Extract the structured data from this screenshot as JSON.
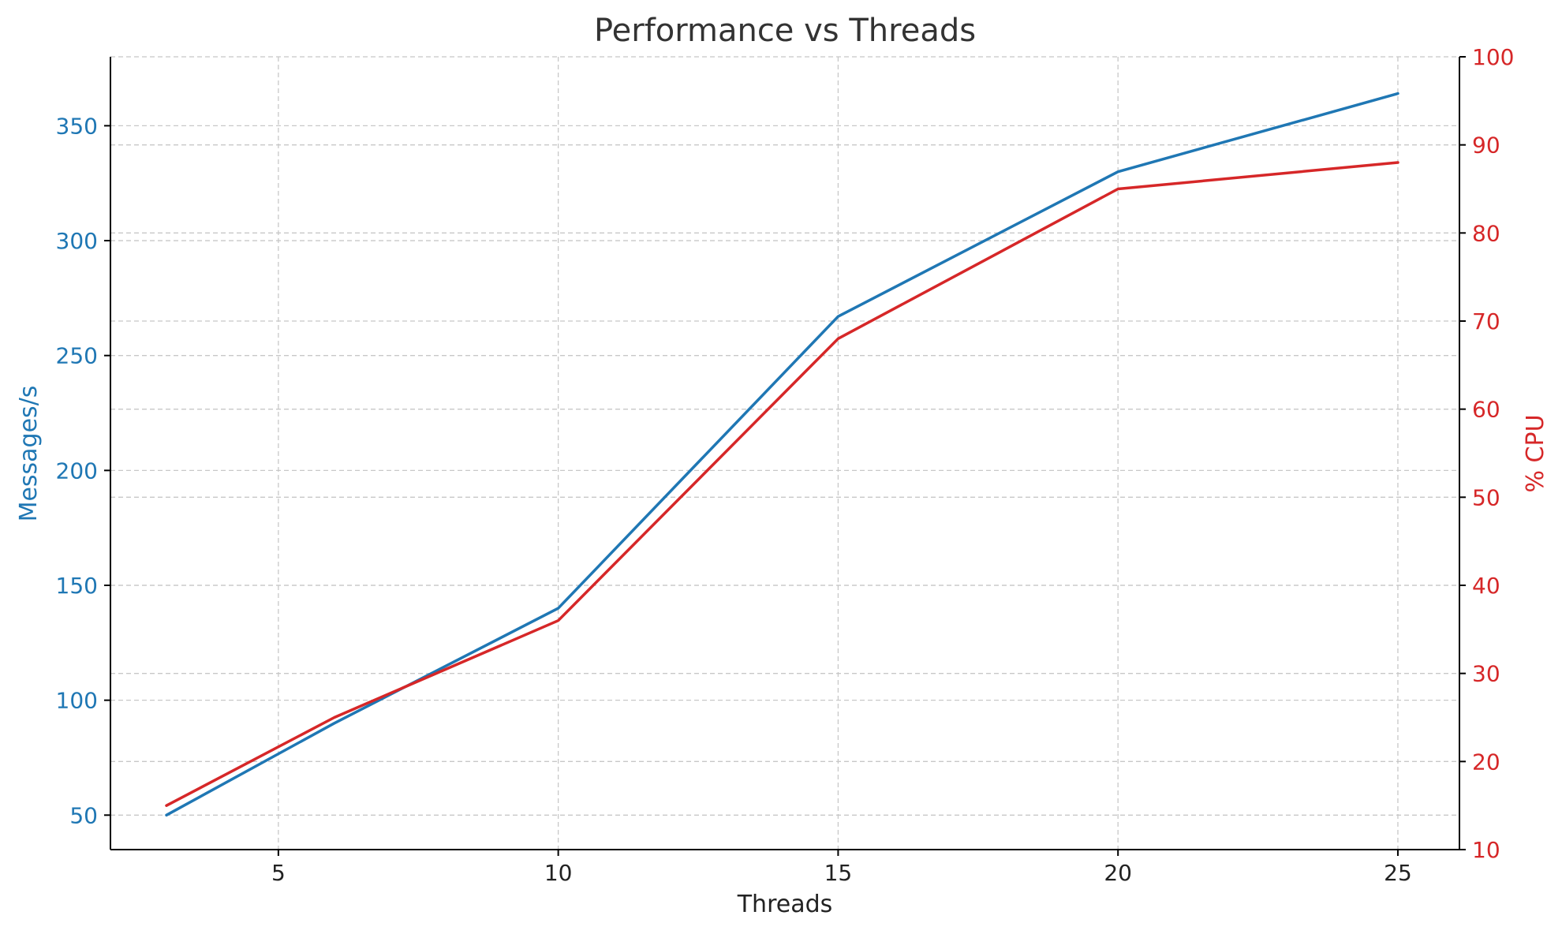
{
  "chart_data": {
    "type": "line",
    "title": "Performance vs Threads",
    "xlabel": "Threads",
    "ylabel_left": "Messages/s",
    "ylabel_right": "% CPU",
    "xlim": [
      2,
      26.1
    ],
    "ylim_left": [
      35,
      380
    ],
    "ylim_right": [
      10,
      100
    ],
    "xticks": [
      5,
      10,
      15,
      20,
      25
    ],
    "yticks_left": [
      50,
      100,
      150,
      200,
      250,
      300,
      350
    ],
    "yticks_right": [
      10,
      20,
      30,
      40,
      50,
      60,
      70,
      80,
      90,
      100
    ],
    "grid": true,
    "x": [
      3,
      6,
      10,
      15,
      20,
      25
    ],
    "series": [
      {
        "axis": "left",
        "color": "#1f77b4",
        "values": [
          50,
          90,
          140,
          267,
          330,
          364
        ]
      },
      {
        "axis": "right",
        "color": "#d62728",
        "values": [
          15,
          25,
          36,
          68,
          85,
          88
        ]
      }
    ],
    "colors": {
      "left_axis": "#1f77b4",
      "right_axis": "#d62728",
      "text": "#333333",
      "grid": "#c8c8c8"
    }
  }
}
